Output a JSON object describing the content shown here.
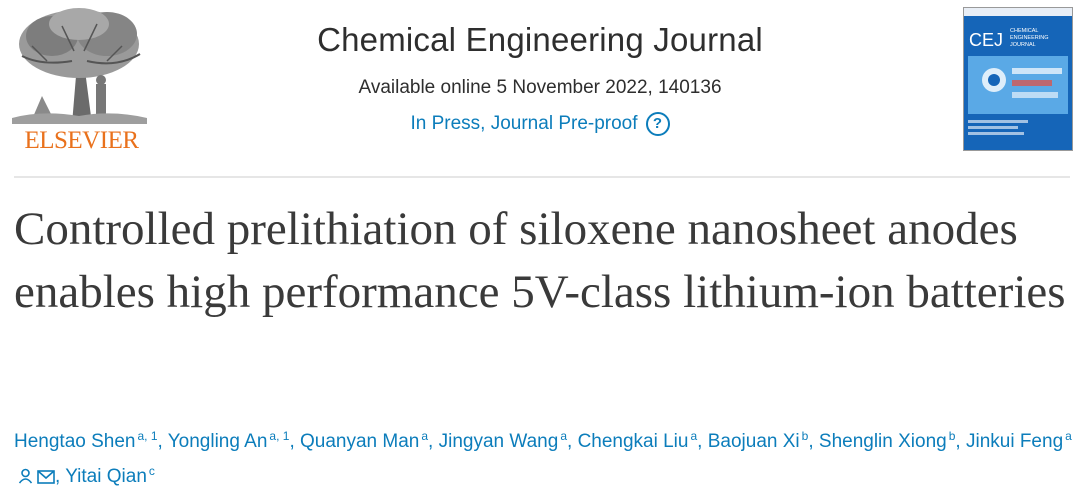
{
  "header": {
    "publisher": "ELSEVIER",
    "journal_title": "Chemical Engineering Journal",
    "availability": "Available online 5 November 2022, 140136",
    "status": "In Press, Journal Pre-proof",
    "help_icon": "question-circle-icon"
  },
  "cover": {
    "acronym": "CEJ",
    "subtitle_lines": [
      "CHEMICAL",
      "ENGINEERING",
      "JOURNAL"
    ]
  },
  "article": {
    "title": "Controlled prelithiation of siloxene nanosheet anodes enables high performance 5V-class lithium-ion batteries"
  },
  "authors": [
    {
      "name": "Hengtao Shen",
      "sup": "a, 1"
    },
    {
      "name": "Yongling An",
      "sup": "a, 1"
    },
    {
      "name": "Quanyan Man",
      "sup": "a"
    },
    {
      "name": "Jingyan Wang",
      "sup": "a"
    },
    {
      "name": "Chengkai Liu",
      "sup": "a"
    },
    {
      "name": "Baojuan Xi",
      "sup": "b"
    },
    {
      "name": "Shenglin Xiong",
      "sup": "b"
    },
    {
      "name": "Jinkui Feng",
      "sup": "a"
    },
    {
      "name": "Yitai Qian",
      "sup": "c"
    }
  ],
  "colors": {
    "link": "#0c7dbb",
    "publisher_orange": "#e9711c",
    "cover_blue": "#1565b8"
  }
}
